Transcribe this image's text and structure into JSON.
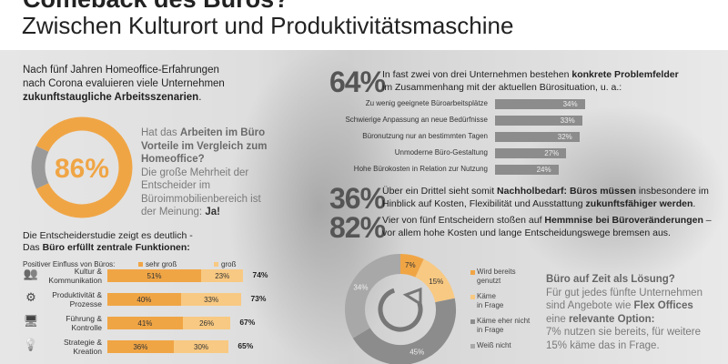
{
  "header": {
    "title": "Comeback des Büros?",
    "subtitle": "Zwischen Kulturort und Produktivitätsmaschine"
  },
  "intro": {
    "line1": "Nach fünf Jahren Homeoffice-Erfahrungen",
    "line2": "nach Corona evaluieren viele Unternehmen",
    "bold": "zukunftstaugliche Arbeitsszenarien",
    "end": "."
  },
  "question": {
    "pre": "Hat das ",
    "bold": "Arbeiten im Büro Vorteile im Vergleich zum Homeoffice?",
    "answer": "Die große Mehrheit der Entscheider im Büroimmobilienbereich ist der Meinung: ",
    "answer_bold": "Ja!"
  },
  "functions": {
    "line1": "Die Entscheiderstudie zeigt es deutlich -",
    "line2_pre": "Das ",
    "line2_bold": "Büro erfüllt zentrale Funktionen:"
  },
  "stats": [
    {
      "value": "64%",
      "text1": "In fast zwei von drei Unternehmen bestehen ",
      "bold1": "konkrete Problemfelder",
      "text2": "im Zusammenhang mit der aktuellen Bürosituation, u. a.:"
    },
    {
      "value": "36%",
      "text1": "Über ein Drittel sieht somit ",
      "bold1": "Nachholbedarf: Büros müssen",
      "text1b": " insbesondere im",
      "text2": "Hinblick auf Kosten, Flexibilität und Ausstattung ",
      "bold2": "zukunftsfähiger werden",
      "end2": "."
    },
    {
      "value": "82%",
      "text1": "Vier von fünf Entscheidern stoßen auf ",
      "bold1": "Hemmnise bei Büroveränderungen",
      "text1b": " –",
      "text2": "vor allem hohe Kosten und lange Entscheidungswege bremsen aus."
    }
  ],
  "flex": {
    "title": "Büro auf Zeit als Lösung?",
    "l1": "Für gut jedes fünfte Unternehmen",
    "l2_pre": "sind Angebote wie ",
    "l2_bold": "Flex Offices",
    "l3_pre": "eine ",
    "l3_bold": "relevante Option:",
    "l4": "7% nutzen sie bereits, für weitere",
    "l5": "15% käme das in Frage."
  },
  "colors": {
    "orange": "#f0a545",
    "light_orange": "#f8c982",
    "gray": "#8c8c8c",
    "light_gray": "#a8a8a8"
  },
  "chart_data": [
    {
      "type": "pie",
      "donut": true,
      "center_label": "86%",
      "values": [
        86,
        14
      ],
      "colors": [
        "#f0a545",
        "#9a9a9a"
      ]
    },
    {
      "type": "bar",
      "stacked": true,
      "orientation": "horizontal",
      "legend_title": "Positiver Einfluss von Büros:",
      "series": [
        {
          "name": "sehr groß",
          "values": [
            51,
            40,
            41,
            36
          ]
        },
        {
          "name": "groß",
          "values": [
            23,
            33,
            26,
            30
          ]
        }
      ],
      "categories": [
        "Kultur & Kommunikation",
        "Produktivität & Prozesse",
        "Führung & Kontrolle",
        "Strategie & Kreation"
      ],
      "category_lines": [
        [
          "Kultur &",
          "Kommunikation"
        ],
        [
          "Produktivität &",
          "Prozesse"
        ],
        [
          "Führung &",
          "Kontrolle"
        ],
        [
          "Strategie &",
          "Kreation"
        ]
      ],
      "icons": [
        "people-icon",
        "gears-icon",
        "presentation-icon",
        "lightbulb-icon"
      ],
      "totals": [
        "74%",
        "73%",
        "67%",
        "65%"
      ]
    },
    {
      "type": "bar",
      "orientation": "horizontal",
      "categories": [
        "Zu wenig geeignete Büroarbeitsplätze",
        "Schwierige Anpassung an neue Bedürfnisse",
        "Büronutzung nur an bestimmten Tagen",
        "Unmoderne Büro-Gestaltung",
        "Hohe Bürokosten in Relation zur Nutzung"
      ],
      "values": [
        34,
        33,
        32,
        27,
        24
      ]
    },
    {
      "type": "pie",
      "donut": true,
      "center_icon": "refresh-icon",
      "slices": [
        {
          "name": "Wird bereits genutzt",
          "lines": [
            "Wird bereits",
            "genutzt"
          ],
          "value": 7,
          "color": "#f0a545"
        },
        {
          "name": "Käme in Frage",
          "lines": [
            "Käme",
            "in Frage"
          ],
          "value": 15,
          "color": "#f8c982"
        },
        {
          "name": "Käme eher nicht in Frage",
          "lines": [
            "Käme eher nicht",
            "in Frage"
          ],
          "value": 45,
          "color": "#8c8c8c"
        },
        {
          "name": "Weiß nicht",
          "lines": [
            "Weiß nicht"
          ],
          "value": 34,
          "color": "#a8a8a8"
        }
      ]
    }
  ]
}
